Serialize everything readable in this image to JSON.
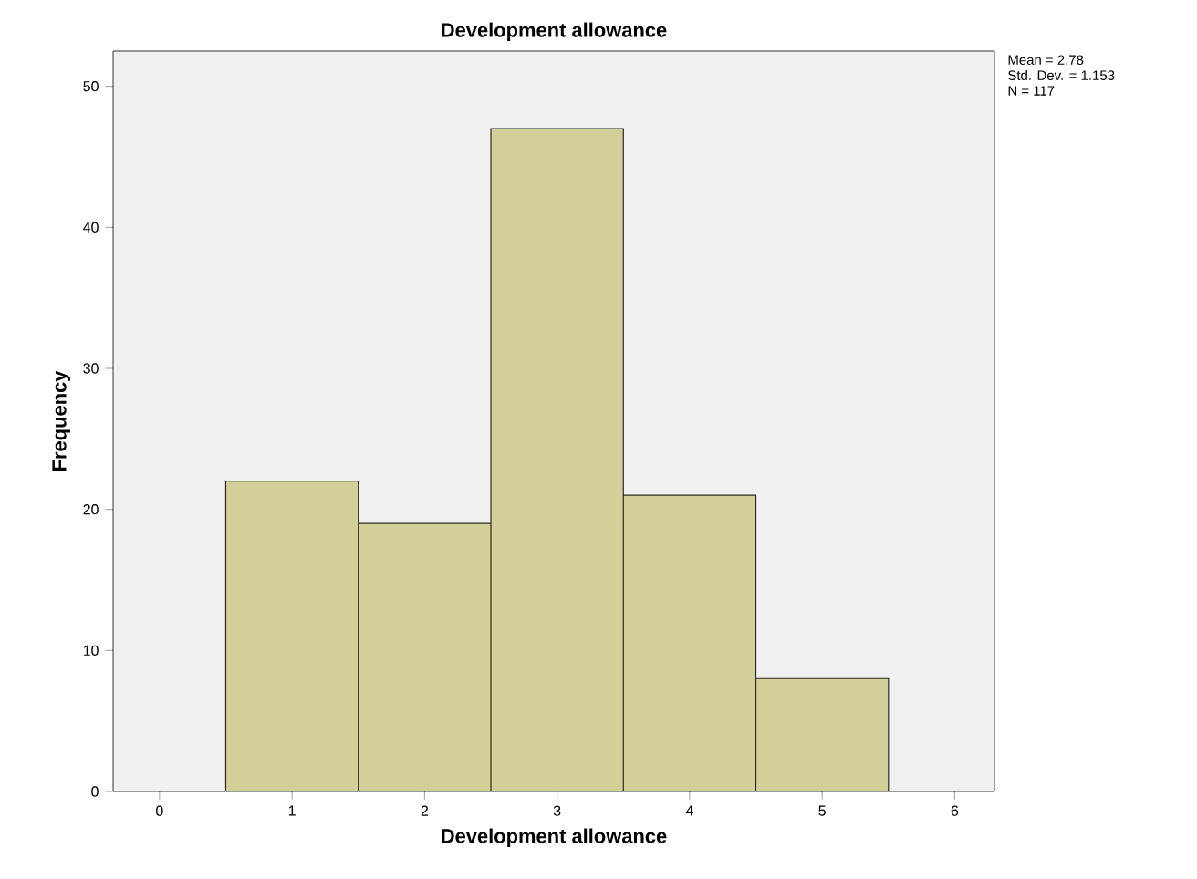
{
  "chart_data": {
    "type": "histogram",
    "title": "Development allowance",
    "xlabel": "Development allowance",
    "ylabel": "Frequency",
    "bins": [
      0.5,
      1.5,
      2.5,
      3.5,
      4.5,
      5.5
    ],
    "values": [
      22,
      19,
      47,
      21,
      8
    ],
    "color": "#d3cf98",
    "xlim": [
      -0.35,
      6.3
    ],
    "ylim": [
      0,
      52.5
    ],
    "xticks": [
      0,
      1,
      2,
      3,
      4,
      5,
      6
    ],
    "yticks": [
      0,
      10,
      20,
      30,
      40,
      50
    ],
    "grid": false,
    "annotations": [
      "Mean = 2.78",
      "Std. Dev. = 1.153",
      "N = 117"
    ]
  }
}
